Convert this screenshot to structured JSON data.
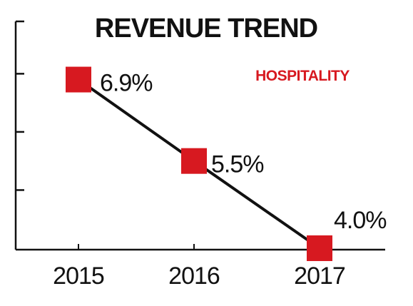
{
  "chart_data": {
    "type": "line",
    "title": "REVENUE TREND",
    "categories": [
      "2015",
      "2016",
      "2017"
    ],
    "series": [
      {
        "name": "HOSPITALITY",
        "values": [
          6.9,
          5.5,
          4.0
        ],
        "data_labels": [
          "6.9%",
          "5.5%",
          "4.0%"
        ]
      }
    ],
    "xlabel": "",
    "ylabel": "",
    "ylim": [
      4.0,
      7.9
    ],
    "y_tick_values": [
      5.0,
      6.0,
      7.0
    ],
    "y_tick_labels_shown": false,
    "grid": false,
    "legend": "top-right",
    "colors": {
      "marker": "#d71920",
      "line": "#111111",
      "axis": "#111111",
      "series_tag": "#d71920"
    }
  }
}
